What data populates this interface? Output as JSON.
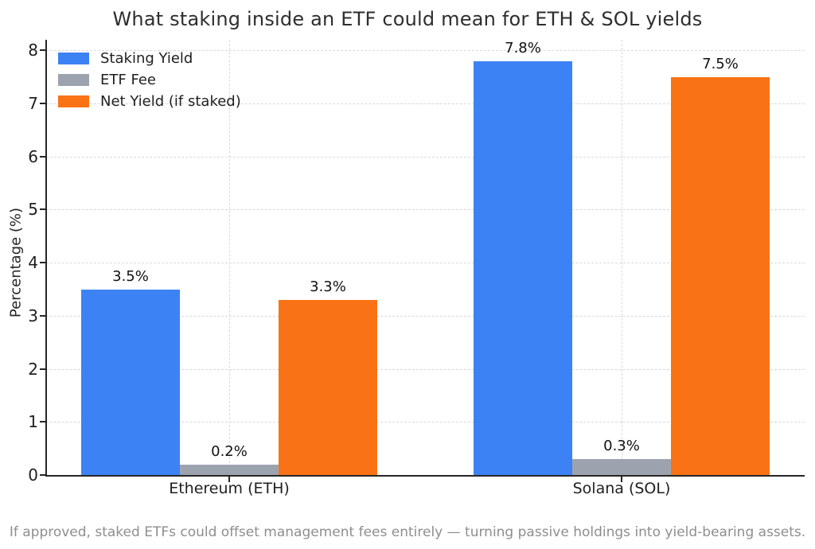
{
  "chart_data": {
    "type": "bar",
    "title": "What staking inside an ETF could mean for ETH & SOL yields",
    "xlabel": "",
    "ylabel": "Percentage (%)",
    "footnote": "If approved, staked ETFs could offset management fees entirely — turning passive holdings into yield-bearing assets.",
    "categories": [
      "Ethereum (ETH)",
      "Solana (SOL)"
    ],
    "series": [
      {
        "name": "Staking Yield",
        "color": "#3d82f4",
        "values": [
          3.5,
          7.8
        ],
        "value_labels": [
          "3.5%",
          "7.8%"
        ]
      },
      {
        "name": "ETF Fee",
        "color": "#9ca3af",
        "values": [
          0.2,
          0.3
        ],
        "value_labels": [
          "0.2%",
          "0.3%"
        ]
      },
      {
        "name": "Net Yield (if staked)",
        "color": "#f97316",
        "values": [
          3.3,
          7.5
        ],
        "value_labels": [
          "3.3%",
          "7.5%"
        ]
      }
    ],
    "ylim": [
      0,
      8.2
    ],
    "yticks": [
      0,
      1,
      2,
      3,
      4,
      5,
      6,
      7,
      8
    ],
    "grid": {
      "show": true,
      "style": "dashed",
      "axes": "both"
    },
    "legend_position": "upper-left",
    "colors": {
      "bar_blue": "#3d82f4",
      "bar_gray": "#9ca3af",
      "bar_orange": "#f97316",
      "axis": "#262626",
      "grid": "#d9d9d9",
      "footnote_text": "#8e8e8e"
    }
  }
}
